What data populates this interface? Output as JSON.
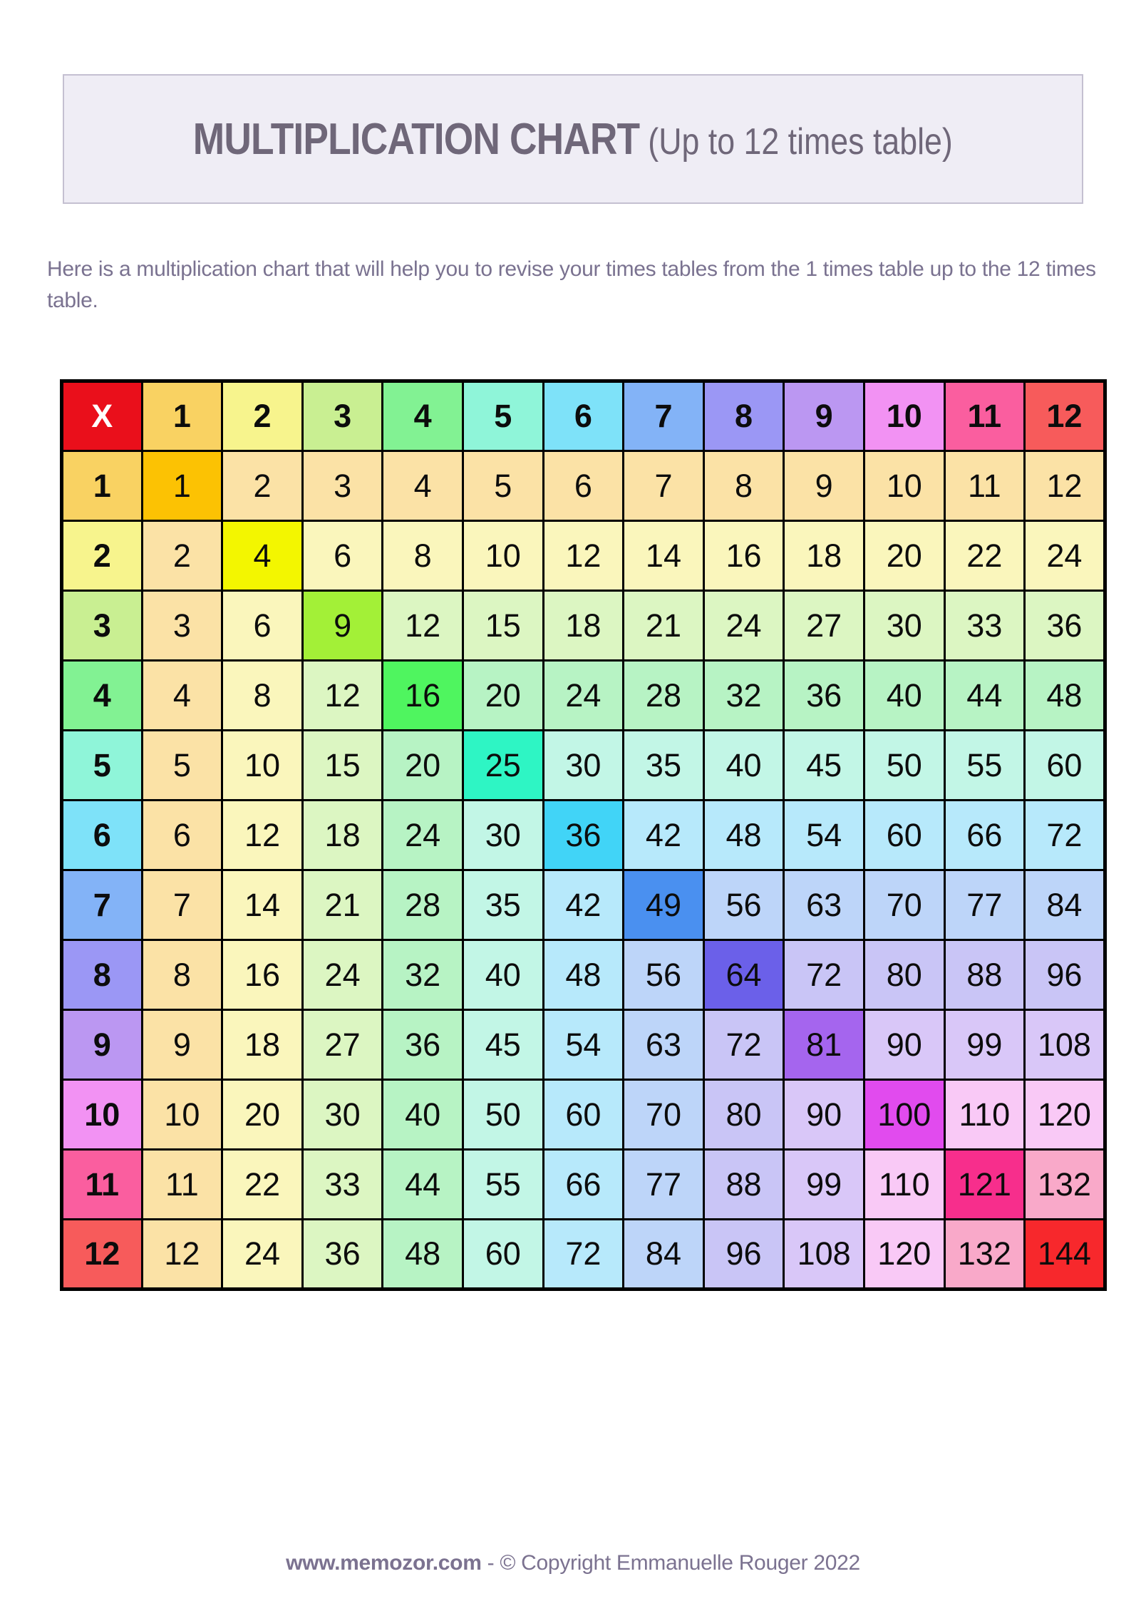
{
  "title": {
    "main": "MULTIPLICATION CHART",
    "suffix": "(Up to 12 times table)"
  },
  "intro": "Here is a multiplication chart that will help you to revise your times tables from the 1 times table up to the 12 times table.",
  "footer": {
    "site": "www.memozor.com",
    "separator": " - ",
    "copyright": "© Copyright Emmanuelle Rouger 2022"
  },
  "chart_data": {
    "type": "table",
    "title": "Multiplication chart up to 12 times table",
    "corner_label": "X",
    "column_headers": [
      1,
      2,
      3,
      4,
      5,
      6,
      7,
      8,
      9,
      10,
      11,
      12
    ],
    "row_headers": [
      1,
      2,
      3,
      4,
      5,
      6,
      7,
      8,
      9,
      10,
      11,
      12
    ],
    "rows": [
      [
        1,
        2,
        3,
        4,
        5,
        6,
        7,
        8,
        9,
        10,
        11,
        12
      ],
      [
        2,
        4,
        6,
        8,
        10,
        12,
        14,
        16,
        18,
        20,
        22,
        24
      ],
      [
        3,
        6,
        9,
        12,
        15,
        18,
        21,
        24,
        27,
        30,
        33,
        36
      ],
      [
        4,
        8,
        12,
        16,
        20,
        24,
        28,
        32,
        36,
        40,
        44,
        48
      ],
      [
        5,
        10,
        15,
        20,
        25,
        30,
        35,
        40,
        45,
        50,
        55,
        60
      ],
      [
        6,
        12,
        18,
        24,
        30,
        36,
        42,
        48,
        54,
        60,
        66,
        72
      ],
      [
        7,
        14,
        21,
        28,
        35,
        42,
        49,
        56,
        63,
        70,
        77,
        84
      ],
      [
        8,
        16,
        24,
        32,
        40,
        48,
        56,
        64,
        72,
        80,
        88,
        96
      ],
      [
        9,
        18,
        27,
        36,
        45,
        54,
        63,
        72,
        81,
        90,
        99,
        108
      ],
      [
        10,
        20,
        30,
        40,
        50,
        60,
        70,
        80,
        90,
        100,
        110,
        120
      ],
      [
        11,
        22,
        33,
        44,
        55,
        66,
        77,
        88,
        99,
        110,
        121,
        132
      ],
      [
        12,
        24,
        36,
        48,
        60,
        72,
        84,
        96,
        108,
        120,
        132,
        144
      ]
    ],
    "colors": {
      "corner_bg": "#EA0F1B",
      "corner_text": "#FFFFFF",
      "grid_line": "#000000",
      "header_bg": [
        "#F9D262",
        "#F7F48D",
        "#C9EF92",
        "#82F293",
        "#8FF5D9",
        "#7EE2F9",
        "#83B3F7",
        "#9B97F5",
        "#BB97F2",
        "#F292F3",
        "#FA5E9F",
        "#F75B5B"
      ],
      "diagonal_bg": [
        "#FCC203",
        "#F3F600",
        "#A3F037",
        "#4FF55F",
        "#2EF5C4",
        "#41D4F7",
        "#4A90F0",
        "#6B60E9",
        "#A565EE",
        "#E14BEE",
        "#F72E8C",
        "#F7282C"
      ],
      "band_bg": [
        "#FBE2A6",
        "#FAF6BC",
        "#DCF6C2",
        "#B7F3C4",
        "#C2F6E6",
        "#B7E9FB",
        "#BDD5F9",
        "#C9C5F6",
        "#D9C7F8",
        "#F9C9F6",
        "#F9A9C9",
        "#F9A9C9"
      ]
    }
  }
}
